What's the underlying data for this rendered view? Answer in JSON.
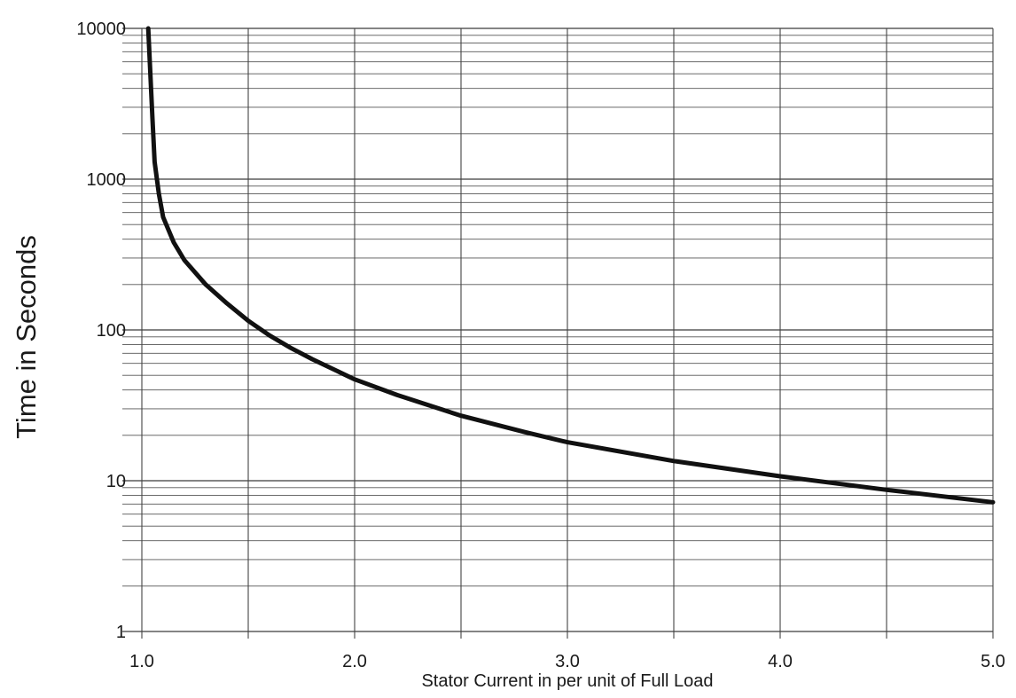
{
  "chart_data": {
    "type": "line",
    "title": "",
    "xlabel": "Stator Current in per unit of Full Load",
    "ylabel": "Time in Seconds",
    "xlim": [
      1.0,
      5.0
    ],
    "ylim": [
      1,
      10000
    ],
    "y_scale": "log",
    "grid": true,
    "x_ticks": [
      "1.0",
      "2.0",
      "3.0",
      "4.0",
      "5.0"
    ],
    "y_ticks": [
      "1",
      "10",
      "100",
      "1000",
      "10000"
    ],
    "series": [
      {
        "x": [
          1.03,
          1.05,
          1.06,
          1.08,
          1.1,
          1.15,
          1.2,
          1.3,
          1.4,
          1.5,
          1.6,
          1.7,
          1.8,
          2.0,
          2.2,
          2.5,
          2.8,
          3.0,
          3.5,
          4.0,
          4.5,
          5.0
        ],
        "y": [
          10000,
          2500,
          1300,
          800,
          560,
          380,
          290,
          200,
          150,
          115,
          92,
          76,
          64,
          47,
          37,
          27,
          21,
          18,
          13.5,
          10.7,
          8.7,
          7.2
        ],
        "color": "#111111"
      }
    ]
  }
}
